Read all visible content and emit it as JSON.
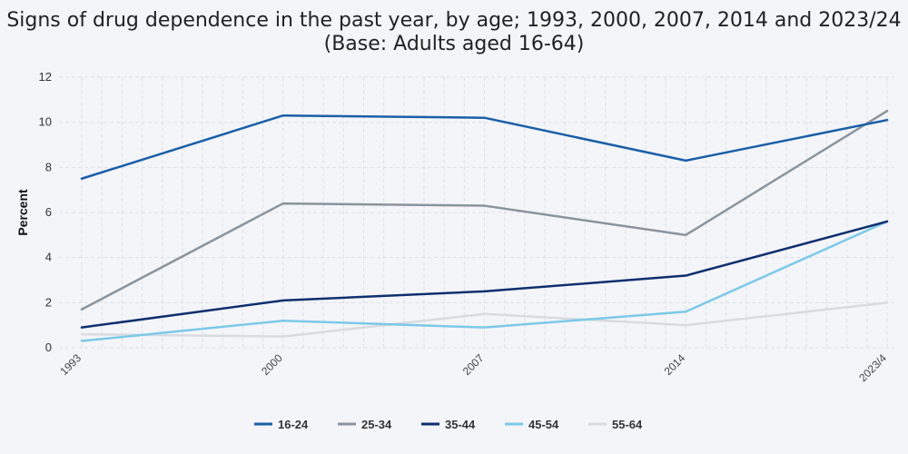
{
  "chart_data": {
    "type": "line",
    "title": "Signs of drug dependence in the past year, by age; 1993, 2000, 2007, 2014 and 2023/24",
    "subtitle": "(Base: Adults aged 16-64)",
    "ylabel": "Percent",
    "xlabel": "",
    "ylim": [
      0,
      12
    ],
    "yticks": [
      "0",
      "2",
      "4",
      "6",
      "8",
      "10",
      "12"
    ],
    "x": [
      "1993",
      "2000",
      "2007",
      "2014",
      "2023/4"
    ],
    "grid": true,
    "legend_position": "bottom",
    "series": [
      {
        "name": "16-24",
        "color": "#1a5fa8",
        "values": [
          7.5,
          10.3,
          10.2,
          8.3,
          10.1
        ]
      },
      {
        "name": "25-34",
        "color": "#8a949e",
        "values": [
          1.7,
          6.4,
          6.3,
          5.0,
          10.5
        ]
      },
      {
        "name": "35-44",
        "color": "#0f2f6e",
        "values": [
          0.9,
          2.1,
          2.5,
          3.2,
          5.6
        ]
      },
      {
        "name": "45-54",
        "color": "#7cc9e8",
        "values": [
          0.3,
          1.2,
          0.9,
          1.6,
          5.6
        ]
      },
      {
        "name": "55-64",
        "color": "#d9dbde",
        "values": [
          0.6,
          0.5,
          1.5,
          1.0,
          2.0
        ]
      }
    ]
  }
}
